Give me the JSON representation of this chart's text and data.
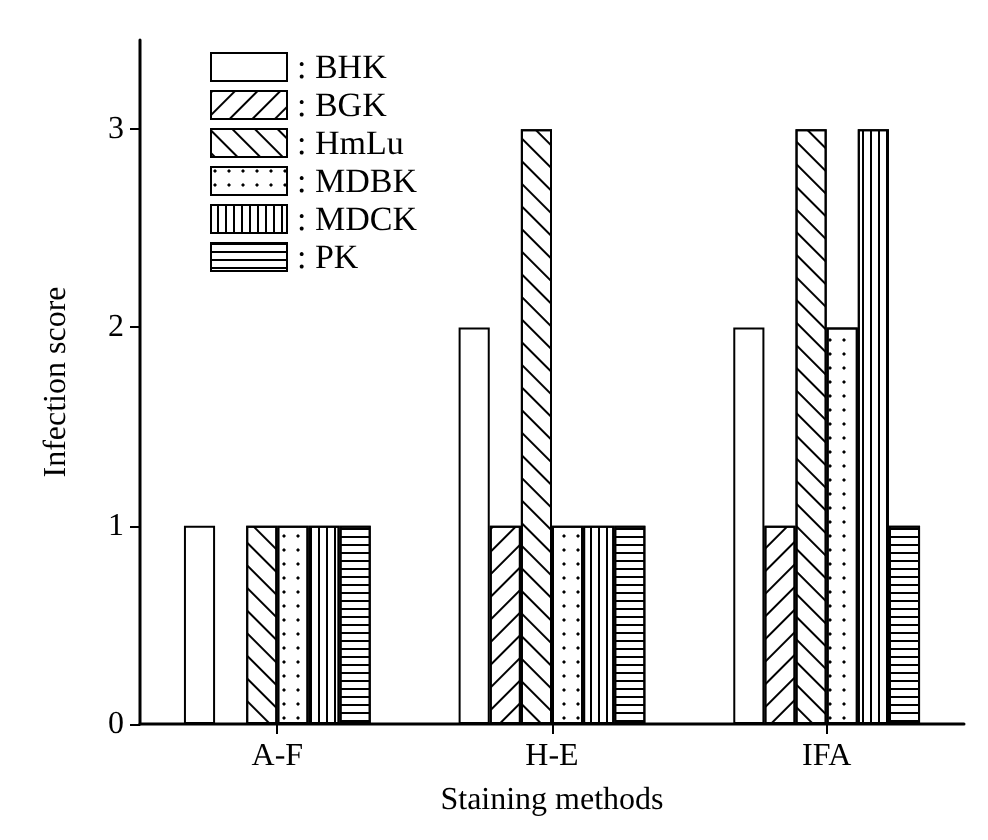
{
  "chart_data": {
    "type": "bar",
    "xlabel": "Staining methods",
    "ylabel": "Infection score",
    "categories": [
      "A-F",
      "H-E",
      "IFA"
    ],
    "series": [
      {
        "name": ": BHK",
        "color": "#ffffff",
        "values": [
          1,
          2,
          2
        ]
      },
      {
        "name": ": BGK",
        "color": "#ffffff",
        "values": [
          0,
          1,
          1
        ]
      },
      {
        "name": ": HmLu",
        "color": "#ffffff",
        "values": [
          1,
          3,
          3
        ]
      },
      {
        "name": ": MDBK",
        "color": "#ffffff",
        "values": [
          1,
          1,
          2
        ]
      },
      {
        "name": ": MDCK",
        "color": "#ffffff",
        "values": [
          1,
          1,
          3
        ]
      },
      {
        "name": ": PK",
        "color": "#ffffff",
        "values": [
          1,
          1,
          1
        ]
      }
    ],
    "ylim": [
      0,
      3.45
    ],
    "yticks": [
      0,
      1,
      2,
      3
    ],
    "grid": false,
    "legend": "top left"
  }
}
